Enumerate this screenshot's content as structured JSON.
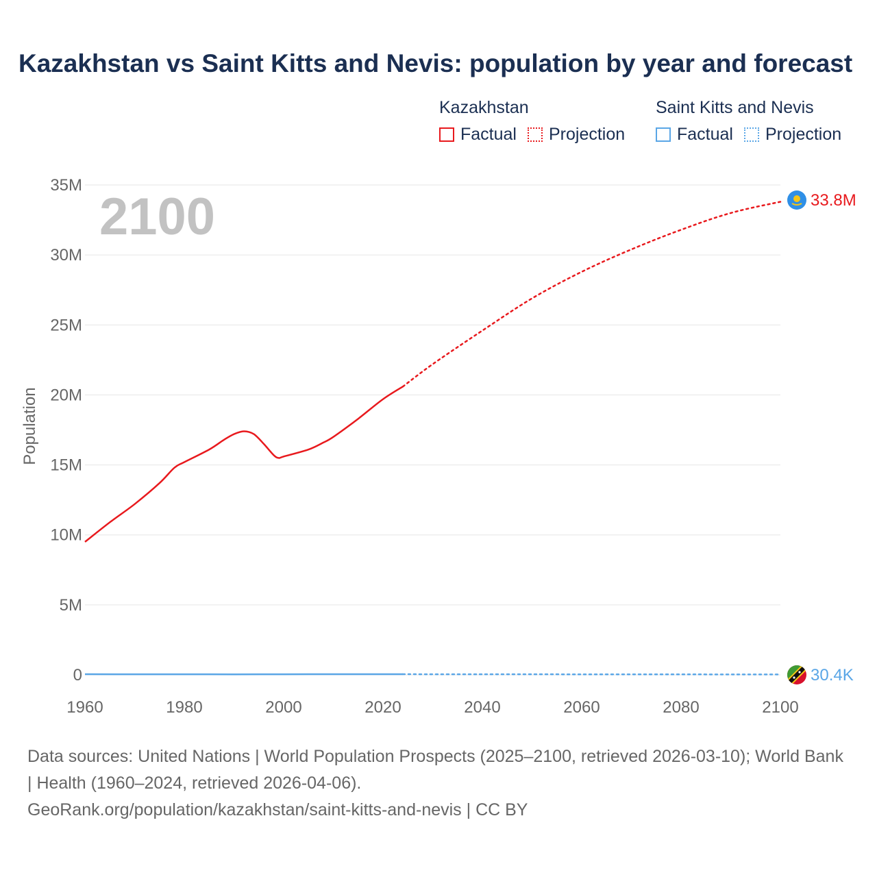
{
  "title": "Kazakhstan vs Saint Kitts and Nevis: population by year and forecast",
  "legend": {
    "groups": [
      {
        "name": "Kazakhstan",
        "factual": "Factual",
        "projection": "Projection",
        "color": "#e8191d"
      },
      {
        "name": "Saint Kitts and Nevis",
        "factual": "Factual",
        "projection": "Projection",
        "color": "#5aa6e6"
      }
    ]
  },
  "year_overlay": "2100",
  "footer": {
    "sources": "Data sources: United Nations | World Population Prospects (2025–2100, retrieved 2026-03-10); World Bank | Health (1960–2024, retrieved 2026-04-06).",
    "link": "GeoRank.org/population/kazakhstan/saint-kitts-and-nevis | CC BY"
  },
  "chart_data": {
    "type": "line",
    "title": "Kazakhstan vs Saint Kitts and Nevis: population by year and forecast",
    "xlabel": "",
    "ylabel": "Population",
    "xlim": [
      1960,
      2100
    ],
    "ylim": [
      0,
      35000000
    ],
    "x_ticks": [
      "1960",
      "1980",
      "2000",
      "2020",
      "2040",
      "2060",
      "2080",
      "2100"
    ],
    "x_tick_values": [
      1960,
      1980,
      2000,
      2020,
      2040,
      2060,
      2080,
      2100
    ],
    "y_ticks": [
      "0",
      "5M",
      "10M",
      "15M",
      "20M",
      "25M",
      "30M",
      "35M"
    ],
    "y_tick_values": [
      0,
      5000000,
      10000000,
      15000000,
      20000000,
      25000000,
      30000000,
      35000000
    ],
    "grid": true,
    "series": [
      {
        "name": "Kazakhstan",
        "color": "#e8191d",
        "end_label": "33.8M",
        "flag_icon": "kazakhstan-flag-icon",
        "factual": {
          "x": [
            1960,
            1965,
            1970,
            1975,
            1978,
            1980,
            1985,
            1988,
            1990,
            1992,
            1994,
            1996,
            1998,
            1999,
            2000,
            2005,
            2008,
            2010,
            2015,
            2020,
            2024
          ],
          "y": [
            9500000,
            10900000,
            12200000,
            13700000,
            14800000,
            15200000,
            16100000,
            16800000,
            17200000,
            17400000,
            17200000,
            16500000,
            15700000,
            15500000,
            15600000,
            16100000,
            16600000,
            17000000,
            18300000,
            19700000,
            20600000
          ]
        },
        "projection": {
          "x": [
            2024,
            2030,
            2040,
            2050,
            2060,
            2070,
            2080,
            2090,
            2100
          ],
          "y": [
            20600000,
            22200000,
            24600000,
            26900000,
            28800000,
            30400000,
            31800000,
            33000000,
            33800000
          ]
        }
      },
      {
        "name": "Saint Kitts and Nevis",
        "color": "#5aa6e6",
        "end_label": "30.4K",
        "flag_icon": "saint-kitts-and-nevis-flag-icon",
        "factual": {
          "x": [
            1960,
            1970,
            1980,
            1990,
            2000,
            2010,
            2020,
            2024
          ],
          "y": [
            51000,
            45000,
            43000,
            41000,
            45000,
            47000,
            47500,
            47000
          ]
        },
        "projection": {
          "x": [
            2024,
            2040,
            2060,
            2080,
            2100
          ],
          "y": [
            47000,
            44000,
            40000,
            35000,
            30400
          ]
        }
      }
    ]
  }
}
